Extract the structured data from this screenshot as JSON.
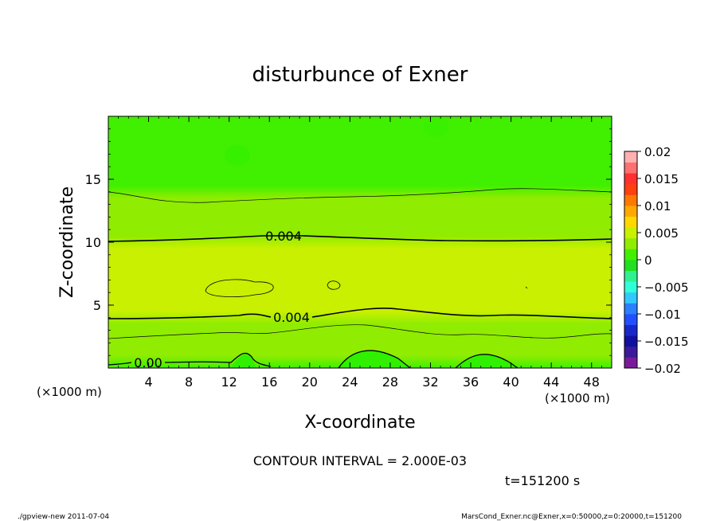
{
  "chart_data": {
    "type": "heatmap",
    "title": "disturbunce of Exner",
    "xlabel": "X-coordinate",
    "ylabel": "Z-coordinate",
    "x_unit": "(×1000 m)",
    "y_unit": "(×1000 m)",
    "xlim": [
      0,
      50
    ],
    "ylim": [
      0,
      20
    ],
    "xticks": [
      4,
      8,
      12,
      16,
      20,
      24,
      28,
      32,
      36,
      40,
      44,
      48
    ],
    "yticks": [
      5,
      10,
      15
    ],
    "contour_interval_text": "CONTOUR INTERVAL = 2.000E-03",
    "time_text": "t=151200 s",
    "contour_labels": [
      {
        "text": "0.004",
        "x": 17.5,
        "z": 10.3
      },
      {
        "text": "0.004",
        "x": 18.0,
        "z": 4.0
      },
      {
        "text": "0.00",
        "x": 3.8,
        "z": 0.5
      }
    ],
    "colorbar": {
      "ticks": [
        {
          "label": "0.02",
          "value": 0.02
        },
        {
          "label": "0.015",
          "value": 0.015
        },
        {
          "label": "0.01",
          "value": 0.01
        },
        {
          "label": "0.005",
          "value": 0.005
        },
        {
          "label": "0",
          "value": 0
        },
        {
          "label": "−0.005",
          "value": -0.005
        },
        {
          "label": "−0.01",
          "value": -0.01
        },
        {
          "label": "−0.015",
          "value": -0.015
        },
        {
          "label": "−0.02",
          "value": -0.02
        }
      ],
      "colors": [
        "#7a1a9a",
        "#3a1a9a",
        "#1010a0",
        "#1828c8",
        "#2050ff",
        "#2a80ff",
        "#30c8ff",
        "#30ffd8",
        "#30f090",
        "#20e020",
        "#40f000",
        "#90ec00",
        "#c8f000",
        "#ffd800",
        "#ffa800",
        "#ff7800",
        "#ff4010",
        "#ff3030",
        "#ff7070",
        "#ffb0b0"
      ]
    },
    "field_levels": [
      {
        "z": 0.0,
        "value": 0.0018
      },
      {
        "z": 1.0,
        "value": 0.0024
      },
      {
        "z": 2.0,
        "value": 0.003
      },
      {
        "z": 2.8,
        "value": 0.0034
      },
      {
        "z": 3.5,
        "value": 0.0038
      },
      {
        "z": 4.5,
        "value": 0.0044
      },
      {
        "z": 5.5,
        "value": 0.005
      },
      {
        "z": 6.5,
        "value": 0.0052
      },
      {
        "z": 7.5,
        "value": 0.005
      },
      {
        "z": 8.5,
        "value": 0.0046
      },
      {
        "z": 9.5,
        "value": 0.0042
      },
      {
        "z": 10.5,
        "value": 0.0038
      },
      {
        "z": 11.5,
        "value": 0.0033
      },
      {
        "z": 12.5,
        "value": 0.0028
      },
      {
        "z": 13.5,
        "value": 0.0022
      },
      {
        "z": 14.5,
        "value": 0.0017
      },
      {
        "z": 16.0,
        "value": 0.0013
      },
      {
        "z": 18.0,
        "value": 0.001
      },
      {
        "z": 20.0,
        "value": 0.0009
      }
    ]
  },
  "footer": {
    "left": "./gpview-new   2011-07-04",
    "right": "MarsCond_Exner.nc@Exner,x=0:50000,z=0:20000,t=151200"
  }
}
